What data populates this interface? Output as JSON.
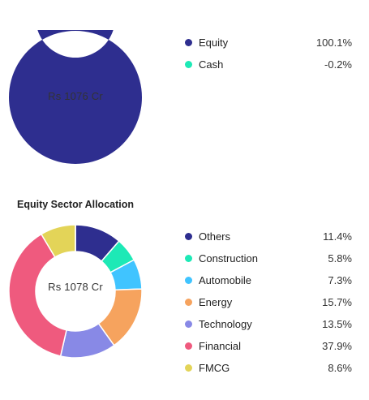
{
  "asset_allocation": {
    "center_text": "Rs 1076 Cr",
    "items": [
      {
        "label": "Equity",
        "value": "100.1%",
        "pct": 100.1,
        "color": "#2e2e8f"
      },
      {
        "label": "Cash",
        "value": "-0.2%",
        "pct": -0.2,
        "color": "#1de9b6"
      }
    ]
  },
  "sector_allocation": {
    "title": "Equity Sector Allocation",
    "center_text": "Rs 1078 Cr",
    "items": [
      {
        "label": "Others",
        "value": "11.4%",
        "pct": 11.4,
        "color": "#2e2e8f"
      },
      {
        "label": "Construction",
        "value": "5.8%",
        "pct": 5.8,
        "color": "#1de9b6"
      },
      {
        "label": "Automobile",
        "value": "7.3%",
        "pct": 7.3,
        "color": "#40c4ff"
      },
      {
        "label": "Energy",
        "value": "15.7%",
        "pct": 15.7,
        "color": "#f6a35e"
      },
      {
        "label": "Technology",
        "value": "13.5%",
        "pct": 13.5,
        "color": "#8889e6"
      },
      {
        "label": "Financial",
        "value": "37.9%",
        "pct": 37.9,
        "color": "#ef5a7e"
      },
      {
        "label": "FMCG",
        "value": "8.6%",
        "pct": 8.6,
        "color": "#e3d458"
      }
    ]
  }
}
